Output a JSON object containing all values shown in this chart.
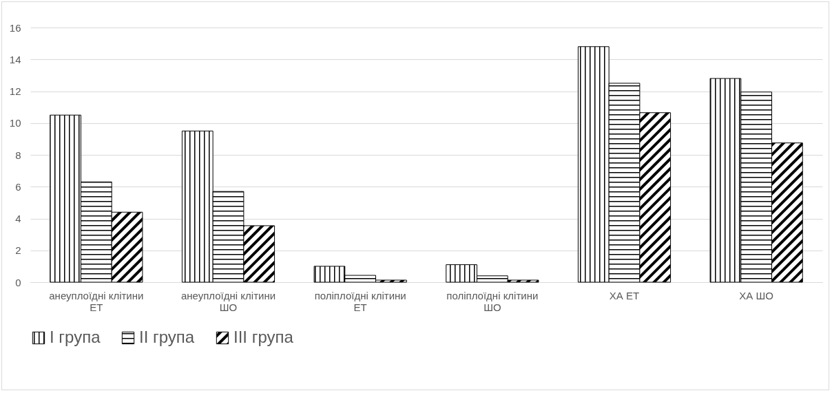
{
  "chart_data": {
    "type": "bar",
    "categories": [
      "анеуплоїдні клітини ЕТ",
      "анеуплоїдні клітини ШО",
      "поліплоїдні клітини ЕТ",
      "поліплоїдні клітини ШО",
      "ХА ЕТ",
      "ХА ШО"
    ],
    "series": [
      {
        "name": "I група",
        "color": "#000000",
        "values": [
          10.5,
          9.5,
          1.0,
          1.1,
          14.8,
          12.8
        ]
      },
      {
        "name": "II група",
        "color": "#000000",
        "values": [
          6.3,
          5.7,
          0.43,
          0.4,
          12.5,
          11.95
        ]
      },
      {
        "name": "III група",
        "color": "#000000",
        "values": [
          4.4,
          3.55,
          0.13,
          0.13,
          10.65,
          8.75
        ]
      }
    ],
    "ylim": [
      0,
      16
    ],
    "yticks": [
      0,
      2,
      4,
      6,
      8,
      10,
      12,
      14,
      16
    ],
    "grid": "y",
    "legend": "bottom"
  }
}
